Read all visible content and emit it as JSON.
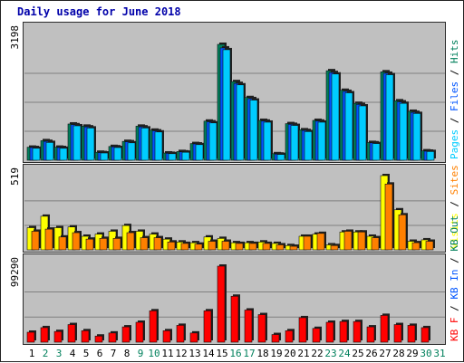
{
  "title": "Daily usage for June 2018",
  "colors": {
    "pages": "#00ccff",
    "files": "#0055ff",
    "hits": "#00805c",
    "visits": "#ffff00",
    "sites": "#ff8000",
    "kbout": "#00805c",
    "kbin": "#0055ff",
    "kbf": "#ff0000",
    "weekend": "#00805c",
    "weekday": "#000000",
    "panel_bg": "#c0c0c0",
    "title": "#0000aa"
  },
  "chart_data": {
    "type": "bar",
    "categories": [
      "1",
      "2",
      "3",
      "4",
      "5",
      "6",
      "7",
      "8",
      "9",
      "10",
      "11",
      "12",
      "13",
      "14",
      "15",
      "16",
      "17",
      "18",
      "19",
      "20",
      "21",
      "22",
      "23",
      "24",
      "25",
      "26",
      "27",
      "28",
      "29",
      "30",
      "31"
    ],
    "weekend_days": [
      "2",
      "3",
      "9",
      "10",
      "16",
      "17",
      "23",
      "24",
      "30",
      "31"
    ],
    "panels": [
      {
        "id": "hits",
        "ymax_label": "3198",
        "ymax": 3198,
        "legend": [
          {
            "text": "Pages",
            "color": "#00ccff"
          },
          {
            "text": " / ",
            "color": "#000000"
          },
          {
            "text": "Files",
            "color": "#0055ff"
          },
          {
            "text": " / ",
            "color": "#000000"
          },
          {
            "text": "Hits",
            "color": "#00805c"
          }
        ],
        "series": [
          {
            "name": "Hits",
            "color": "#00805c",
            "values": [
              360,
              540,
              360,
              1000,
              940,
              220,
              380,
              520,
              940,
              830,
              200,
              240,
              460,
              1080,
              3198,
              2170,
              1730,
              1100,
              180,
              1010,
              840,
              1100,
              2470,
              1930,
              1570,
              490,
              2440,
              1640,
              1350,
              260,
              null
            ]
          },
          {
            "name": "Files",
            "color": "#0055ff",
            "values": [
              350,
              520,
              350,
              980,
              920,
              210,
              370,
              510,
              920,
              810,
              190,
              230,
              450,
              1060,
              3100,
              2120,
              1700,
              1080,
              170,
              990,
              820,
              1080,
              2420,
              1900,
              1540,
              480,
              2400,
              1610,
              1320,
              250,
              null
            ]
          },
          {
            "name": "Pages",
            "color": "#00ccff",
            "values": [
              330,
              490,
              330,
              950,
              890,
              200,
              350,
              480,
              890,
              780,
              180,
              220,
              430,
              1030,
              3050,
              2080,
              1660,
              1050,
              160,
              960,
              790,
              1050,
              2380,
              1860,
              1500,
              460,
              2360,
              1570,
              1290,
              240,
              null
            ]
          }
        ]
      },
      {
        "id": "visits",
        "ymax_label": "519",
        "ymax": 519,
        "legend": [
          {
            "text": "Visits",
            "color": "#ffff00"
          },
          {
            "text": " / ",
            "color": "#000000"
          },
          {
            "text": "Sites",
            "color": "#ff8000"
          }
        ],
        "series": [
          {
            "name": "Visits",
            "color": "#ffff00",
            "values": [
              155,
              235,
              155,
              160,
              95,
              110,
              130,
              170,
              130,
              110,
              75,
              55,
              50,
              90,
              80,
              50,
              50,
              55,
              45,
              30,
              95,
              110,
              35,
              125,
              125,
              95,
              519,
              280,
              60,
              70,
              null
            ]
          },
          {
            "name": "Sites",
            "color": "#ff8000",
            "values": [
              130,
              145,
              90,
              120,
              75,
              80,
              80,
              120,
              85,
              85,
              55,
              45,
              40,
              60,
              60,
              45,
              45,
              45,
              35,
              25,
              95,
              115,
              30,
              130,
              125,
              85,
              460,
              245,
              50,
              60,
              null
            ]
          }
        ]
      },
      {
        "id": "kbytes",
        "ymax_label": "99290",
        "ymax": 99290,
        "legend": [
          {
            "text": "KB F",
            "color": "#ff0000"
          },
          {
            "text": " / ",
            "color": "#000000"
          },
          {
            "text": "KB In",
            "color": "#0055ff"
          },
          {
            "text": " / ",
            "color": "#000000"
          },
          {
            "text": "KB Out",
            "color": "#00805c"
          }
        ],
        "series": [
          {
            "name": "KB F",
            "color": "#ff0000",
            "values": [
              13000,
              19000,
              14000,
              23000,
              15000,
              8000,
              12000,
              20000,
              26000,
              41000,
              15000,
              22000,
              12000,
              41000,
              99290,
              60000,
              42000,
              36000,
              10000,
              15000,
              32000,
              18000,
              26000,
              27000,
              27000,
              20000,
              35000,
              23000,
              22000,
              19000,
              null
            ]
          }
        ]
      }
    ]
  }
}
